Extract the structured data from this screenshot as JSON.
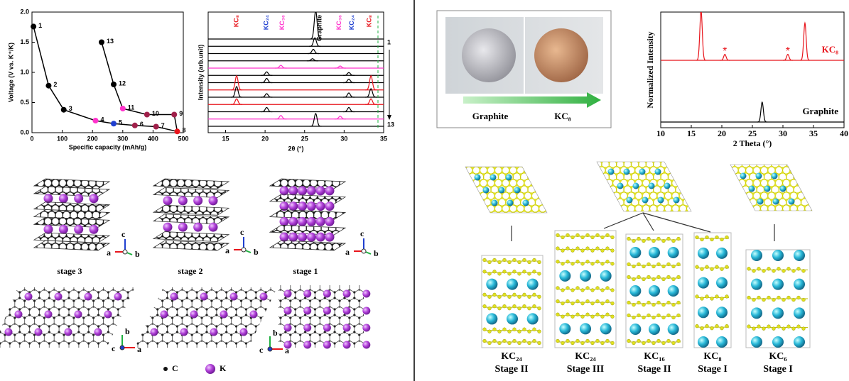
{
  "chart_data": [
    {
      "type": "line",
      "x_label": "Specific capacity (mAh/g)",
      "y_label": "Voltage (V vs. K⁺/K)",
      "xlim": [
        0,
        500
      ],
      "xticks": [
        0,
        100,
        200,
        300,
        400,
        500
      ],
      "ylim": [
        0,
        2
      ],
      "yticks": [
        {
          "value": 0,
          "label": "0.0"
        },
        {
          "value": 0.5,
          "label": "0.5"
        },
        {
          "value": 1,
          "label": "1.0"
        },
        {
          "value": 1.5,
          "label": "1.5"
        },
        {
          "value": 2,
          "label": "2.0"
        }
      ],
      "series": [
        {
          "color": "#000000",
          "x": [
            5,
            55,
            105,
            210,
            270,
            340,
            410,
            480,
            470,
            380,
            300,
            270,
            230
          ],
          "values": [
            1.76,
            0.78,
            0.38,
            0.2,
            0.15,
            0.12,
            0.1,
            0.02,
            0.3,
            0.3,
            0.4,
            0.8,
            1.5
          ],
          "labels": [
            1,
            2,
            3,
            4,
            5,
            6,
            7,
            8,
            9,
            10,
            11,
            12,
            13
          ],
          "point_colors": [
            "#000000",
            "#000000",
            "#000000",
            "#ff33cc",
            "#1f3fd0",
            "#a0204a",
            "#a0204a",
            "#e8141b",
            "#a0204a",
            "#a0204a",
            "#ff33cc",
            "#000000",
            "#000000"
          ]
        }
      ]
    },
    {
      "type": "xrd",
      "x_label": "2θ (°)",
      "y_label": "Intensity (arb.unit)",
      "xlim": [
        12.8,
        35
      ],
      "xticks": [
        15,
        20,
        25,
        30,
        35
      ],
      "scan_order": [
        1,
        13
      ],
      "annotations": [
        {
          "text": "KC₈",
          "x": 16.4,
          "color": "#e8141b"
        },
        {
          "text": "KC₂₄",
          "x": 20.2,
          "color": "#1f3fd0"
        },
        {
          "text": "KC₃₆",
          "x": 22.2,
          "color": "#ff33cc"
        },
        {
          "text": "Graphite",
          "x": 26.9,
          "color": "#000000"
        },
        {
          "text": "KC₃₆",
          "x": 29.4,
          "color": "#ff33cc"
        },
        {
          "text": "KC₂₄",
          "x": 31.0,
          "color": "#1f3fd0"
        },
        {
          "text": "KC₈",
          "x": 33.2,
          "color": "#e8141b"
        }
      ],
      "series": [
        {
          "color": "#000000",
          "peaks": [
            26.4
          ],
          "heights": [
            4
          ]
        },
        {
          "color": "#000000",
          "peaks": [
            26.3
          ],
          "heights": [
            1.2
          ]
        },
        {
          "color": "#000000",
          "peaks": [
            26.1
          ],
          "heights": [
            0.6
          ]
        },
        {
          "color": "#000000",
          "peaks": [
            26.0
          ],
          "heights": [
            0.3
          ]
        },
        {
          "color": "#ff33cc",
          "peaks": [
            22.0,
            29.5
          ],
          "heights": [
            0.4,
            0.3
          ]
        },
        {
          "color": "#000000",
          "peaks": [
            20.2,
            30.6
          ],
          "heights": [
            0.5,
            0.4
          ]
        },
        {
          "color": "#000000",
          "peaks": [
            20.2,
            30.6
          ],
          "heights": [
            0.6,
            0.5
          ]
        },
        {
          "color": "#e8141b",
          "peaks": [
            16.4,
            33.4
          ],
          "heights": [
            2,
            2
          ]
        },
        {
          "color": "#000000",
          "peaks": [
            16.4,
            20.2,
            30.6,
            33.4
          ],
          "heights": [
            1.5,
            0.5,
            0.6,
            1.2
          ]
        },
        {
          "color": "#e8141b",
          "peaks": [
            16.4,
            33.4
          ],
          "heights": [
            0.8,
            0.8
          ]
        },
        {
          "color": "#000000",
          "peaks": [
            20.2,
            30.6
          ],
          "heights": [
            0.6,
            0.6
          ]
        },
        {
          "color": "#ff33cc",
          "peaks": [
            22.0,
            29.5
          ],
          "heights": [
            0.5,
            0.4
          ]
        },
        {
          "color": "#000000",
          "peaks": [
            26.4
          ],
          "heights": [
            1.8
          ]
        }
      ]
    },
    {
      "type": "xrd",
      "x_label": "2 Theta (°)",
      "y_label": "Normalized Intensity",
      "xlim": [
        10,
        40
      ],
      "xticks": [
        10,
        15,
        20,
        25,
        30,
        35,
        40
      ],
      "annotations": [
        {
          "text": "*",
          "x": 20.5,
          "color": "#e8141b"
        },
        {
          "text": "*",
          "x": 30.8,
          "color": "#e8141b"
        }
      ],
      "series": [
        {
          "name": "KC₈",
          "color": "#e8141b",
          "peaks": [
            16.6,
            20.5,
            30.8,
            33.6
          ],
          "heights": [
            1,
            0.12,
            0.12,
            0.75
          ]
        },
        {
          "name": "Graphite",
          "color": "#000000",
          "peaks": [
            26.6
          ],
          "heights": [
            0.4
          ]
        }
      ]
    }
  ],
  "figure": {
    "structure_axes": [
      "a",
      "b",
      "c"
    ],
    "stage_labels": [
      "stage 3",
      "stage 2",
      "stage 1"
    ],
    "atom_legend": [
      "C",
      "K"
    ],
    "photo_labels": [
      "Graphite",
      "KC₈"
    ],
    "structures": [
      {
        "formula": "KC₂₄",
        "stage": "Stage II"
      },
      {
        "formula": "KC₂₄",
        "stage": "Stage III"
      },
      {
        "formula": "KC₁₆",
        "stage": "Stage II"
      },
      {
        "formula": "KC₈",
        "stage": "Stage I"
      },
      {
        "formula": "KC₆",
        "stage": "Stage I"
      }
    ]
  }
}
